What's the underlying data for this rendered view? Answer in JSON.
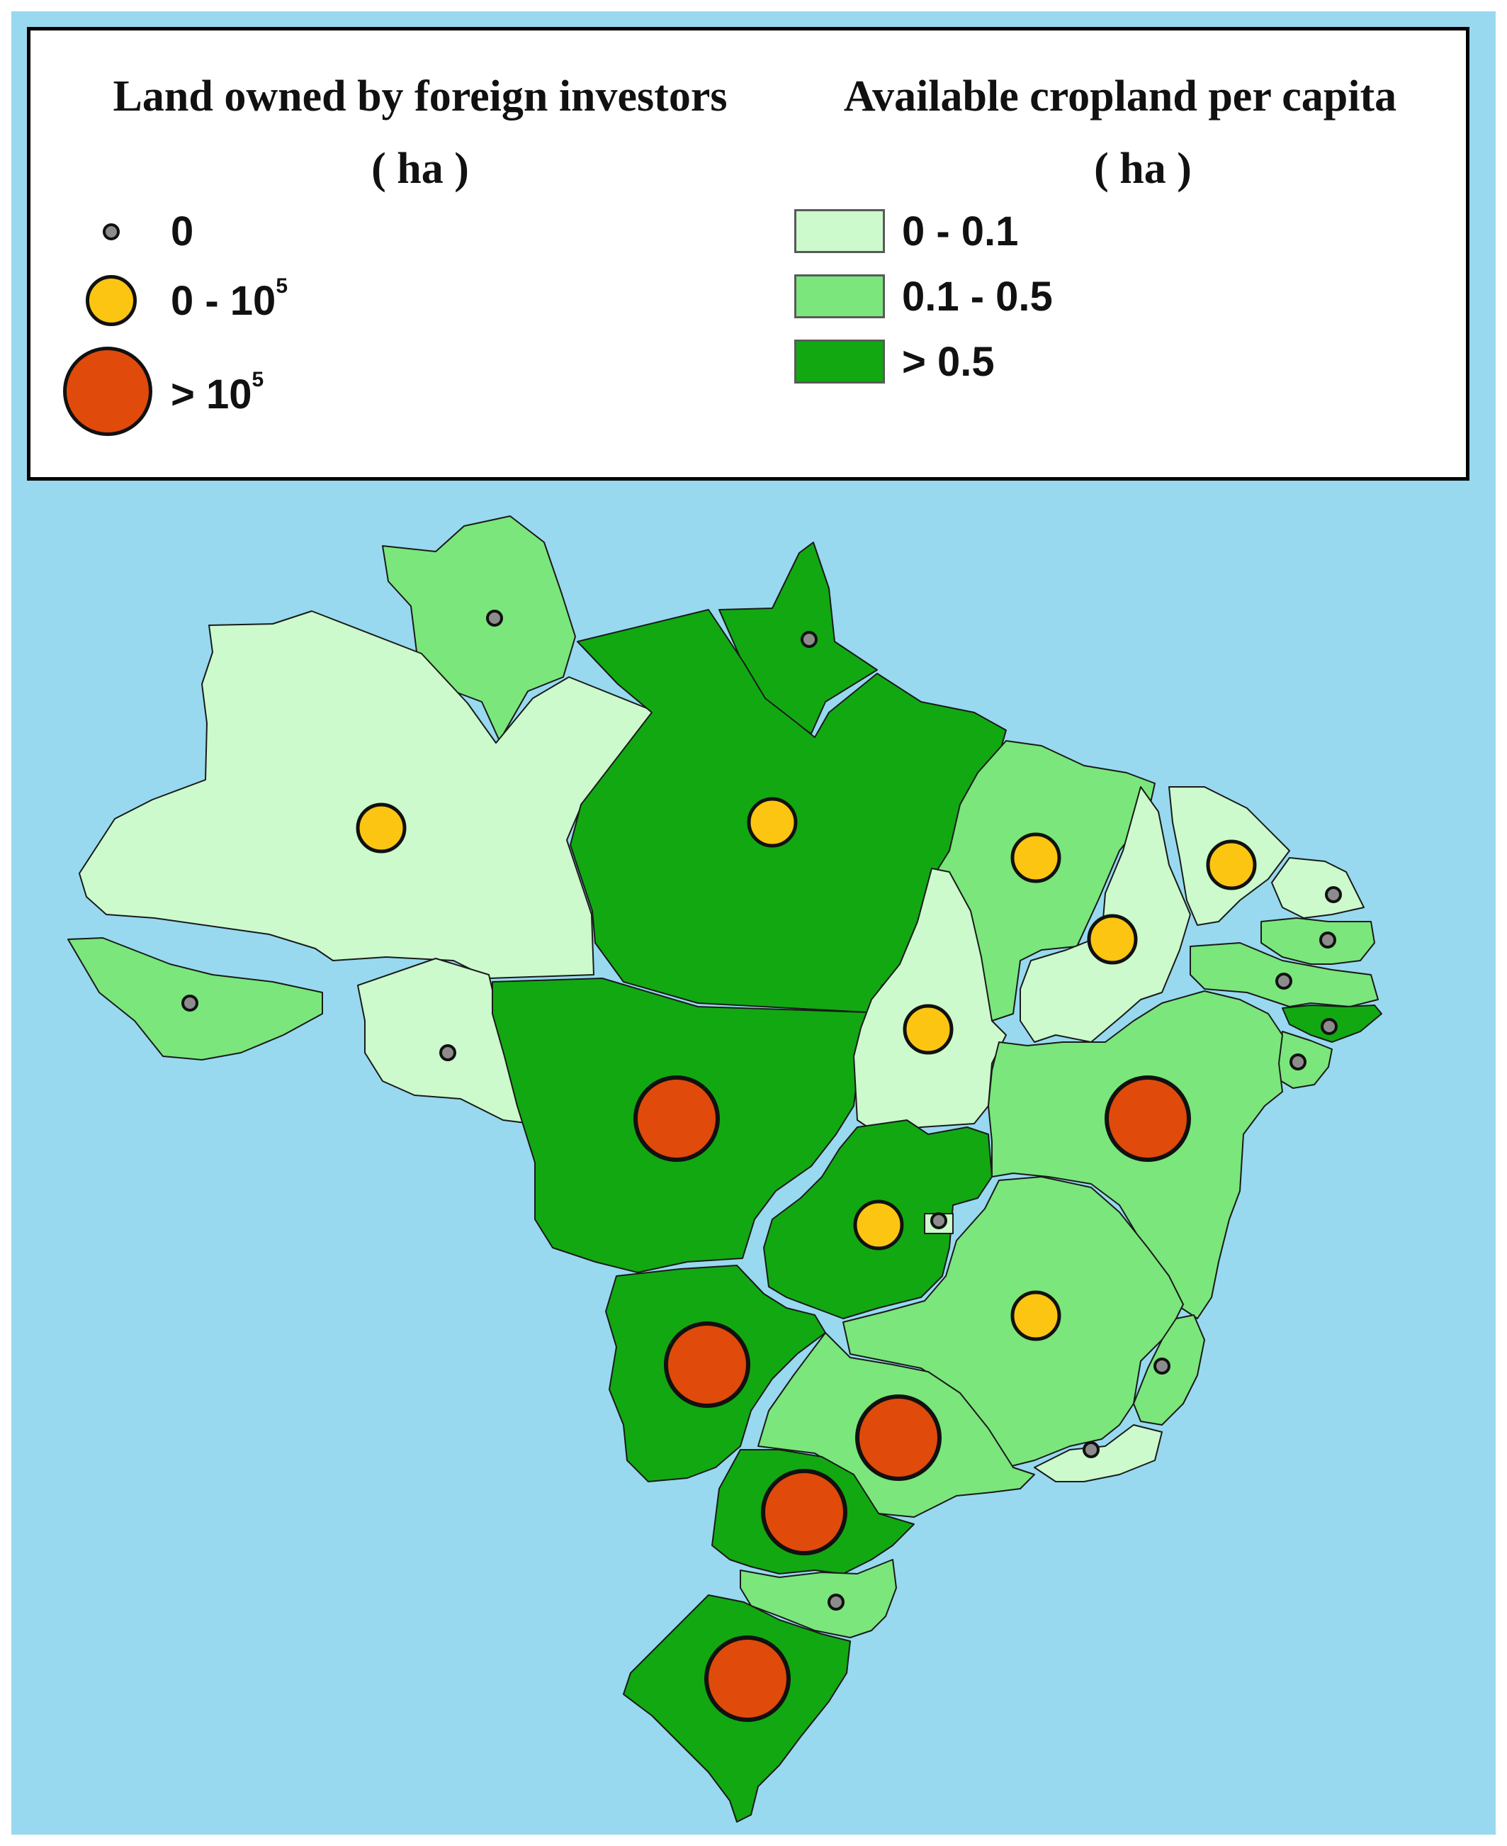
{
  "colors": {
    "ocean": "#98d9ef",
    "class_0_0_1": "#ccfacc",
    "class_0_1_0_5": "#7be67b",
    "class_gt_0_5": "#12a812",
    "marker_zero": "#8c8c8c",
    "marker_small": "#fcc512",
    "marker_large": "#e04a0a"
  },
  "legend": {
    "investors_title": "Land owned by foreign investors",
    "investors_unit": "( ha )",
    "investors_items": [
      {
        "label": "0",
        "class": "zero"
      },
      {
        "label_base": "0 - 10",
        "label_exp": "5",
        "class": "small"
      },
      {
        "label_base": "> 10",
        "label_exp": "5",
        "class": "large"
      }
    ],
    "cropland_title": "Available cropland per capita",
    "cropland_unit": "( ha )",
    "cropland_items": [
      {
        "label": "0 - 0.1",
        "class": "class_0_0_1"
      },
      {
        "label": "0.1 - 0.5",
        "class": "class_0_1_0_5"
      },
      {
        "label": "> 0.5",
        "class": "class_gt_0_5"
      }
    ]
  },
  "regions": [
    {
      "id": "roraima",
      "cropland": "class_0_1_0_5",
      "investment": "zero"
    },
    {
      "id": "amapa",
      "cropland": "class_gt_0_5",
      "investment": "zero"
    },
    {
      "id": "amazonas",
      "cropland": "class_0_0_1",
      "investment": "small"
    },
    {
      "id": "para",
      "cropland": "class_gt_0_5",
      "investment": "small"
    },
    {
      "id": "acre",
      "cropland": "class_0_1_0_5",
      "investment": "zero"
    },
    {
      "id": "rondonia",
      "cropland": "class_0_0_1",
      "investment": "zero"
    },
    {
      "id": "mato-grosso",
      "cropland": "class_gt_0_5",
      "investment": "large"
    },
    {
      "id": "maranhao",
      "cropland": "class_0_1_0_5",
      "investment": "small"
    },
    {
      "id": "piaui",
      "cropland": "class_0_0_1",
      "investment": "small"
    },
    {
      "id": "ceara",
      "cropland": "class_0_0_1",
      "investment": "small"
    },
    {
      "id": "rio-grande-do-norte",
      "cropland": "class_0_0_1",
      "investment": "zero"
    },
    {
      "id": "paraiba",
      "cropland": "class_0_1_0_5",
      "investment": "zero"
    },
    {
      "id": "pernambuco",
      "cropland": "class_0_1_0_5",
      "investment": "zero"
    },
    {
      "id": "alagoas",
      "cropland": "class_gt_0_5",
      "investment": "zero"
    },
    {
      "id": "sergipe",
      "cropland": "class_0_1_0_5",
      "investment": "zero"
    },
    {
      "id": "tocantins",
      "cropland": "class_0_0_1",
      "investment": "small"
    },
    {
      "id": "bahia",
      "cropland": "class_0_1_0_5",
      "investment": "large"
    },
    {
      "id": "goias",
      "cropland": "class_gt_0_5",
      "investment": "small"
    },
    {
      "id": "distrito-federal",
      "cropland": "class_0_0_1",
      "investment": "zero"
    },
    {
      "id": "minas-gerais",
      "cropland": "class_0_1_0_5",
      "investment": "small"
    },
    {
      "id": "espirito-santo",
      "cropland": "class_0_1_0_5",
      "investment": "zero"
    },
    {
      "id": "rio-de-janeiro",
      "cropland": "class_0_0_1",
      "investment": "zero"
    },
    {
      "id": "mato-grosso-do-sul",
      "cropland": "class_gt_0_5",
      "investment": "large"
    },
    {
      "id": "sao-paulo",
      "cropland": "class_0_1_0_5",
      "investment": "large"
    },
    {
      "id": "parana",
      "cropland": "class_gt_0_5",
      "investment": "large"
    },
    {
      "id": "santa-catarina",
      "cropland": "class_0_1_0_5",
      "investment": "zero"
    },
    {
      "id": "rio-grande-do-sul",
      "cropland": "class_gt_0_5",
      "investment": "large"
    }
  ]
}
